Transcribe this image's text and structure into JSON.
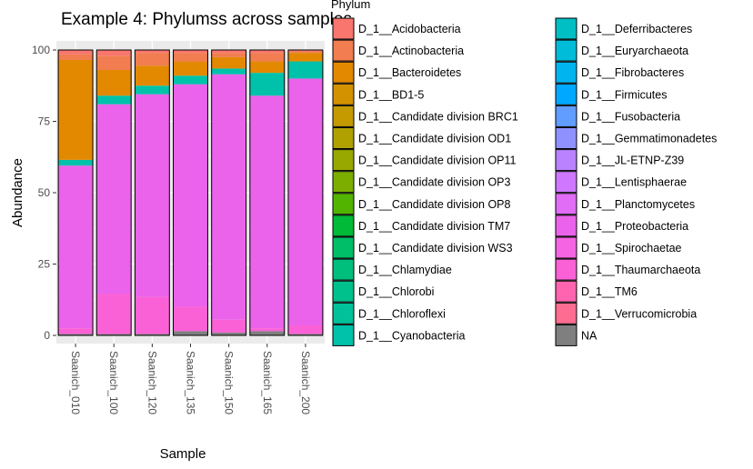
{
  "chart_data": {
    "type": "bar",
    "title": "Example 4: Phylumss across samples",
    "xlabel": "Sample",
    "ylabel": "Abundance",
    "ylim": [
      0,
      100
    ],
    "yticks": [
      0,
      25,
      50,
      75,
      100
    ],
    "grid": true,
    "legend_position": "right",
    "legend_title": "Phylum",
    "categories": [
      "Saanich_010",
      "Saanich_100",
      "Saanich_120",
      "Saanich_135",
      "Saanich_150",
      "Saanich_165",
      "Saanich_200"
    ],
    "series": [
      {
        "name": "NA",
        "color": "#7f7f7f",
        "values": [
          0.5,
          0.5,
          0.5,
          1.5,
          1,
          1.5,
          0.5
        ]
      },
      {
        "name": "D_1__Thaumarchaeota",
        "color": "#fb61d7",
        "values": [
          2,
          14,
          13,
          8.5,
          4.5,
          1,
          3
        ]
      },
      {
        "name": "D_1__Proteobacteria",
        "color": "#ea63ea",
        "values": [
          57,
          66.5,
          71,
          78,
          86,
          81.5,
          86.5
        ]
      },
      {
        "name": "D_1__Cyanobacteria",
        "color": "#00c1aa",
        "values": [
          2,
          3,
          3,
          3,
          2,
          8,
          6
        ]
      },
      {
        "name": "D_1__Bacteroidetes",
        "color": "#e38900",
        "values": [
          35,
          9,
          7,
          5,
          4,
          4,
          3
        ]
      },
      {
        "name": "D_1__Actinobacteria",
        "color": "#f17d50",
        "values": [
          2,
          5,
          4.5,
          3,
          1.5,
          3,
          0.5
        ]
      },
      {
        "name": "D_1__Acidobacteria",
        "color": "#f8766d",
        "values": [
          1.5,
          2,
          1,
          1,
          1,
          1,
          0.5
        ]
      }
    ],
    "legend": {
      "columns": [
        [
          {
            "label": "D_1__Acidobacteria",
            "color": "#f8766d"
          },
          {
            "label": "D_1__Actinobacteria",
            "color": "#f17d50"
          },
          {
            "label": "D_1__Bacteroidetes",
            "color": "#e38900"
          },
          {
            "label": "D_1__BD1-5",
            "color": "#d39200"
          },
          {
            "label": "D_1__Candidate division BRC1",
            "color": "#c49a00"
          },
          {
            "label": "D_1__Candidate division OD1",
            "color": "#b0a100"
          },
          {
            "label": "D_1__Candidate division OP11",
            "color": "#99a800"
          },
          {
            "label": "D_1__Candidate division OP3",
            "color": "#7cae00"
          },
          {
            "label": "D_1__Candidate division OP8",
            "color": "#53b400"
          },
          {
            "label": "D_1__Candidate division TM7",
            "color": "#00ba38"
          },
          {
            "label": "D_1__Candidate division WS3",
            "color": "#00be67"
          },
          {
            "label": "D_1__Chlamydiae",
            "color": "#00bf7d"
          },
          {
            "label": "D_1__Chlorobi",
            "color": "#00c08b"
          },
          {
            "label": "D_1__Chloroflexi",
            "color": "#00c19a"
          },
          {
            "label": "D_1__Cyanobacteria",
            "color": "#00c1aa"
          }
        ],
        [
          {
            "label": "D_1__Deferribacteres",
            "color": "#00bfc4"
          },
          {
            "label": "D_1__Euryarchaeota",
            "color": "#00bcd8"
          },
          {
            "label": "D_1__Fibrobacteres",
            "color": "#00b4f0"
          },
          {
            "label": "D_1__Firmicutes",
            "color": "#00a9ff"
          },
          {
            "label": "D_1__Fusobacteria",
            "color": "#619cff"
          },
          {
            "label": "D_1__Gemmatimonadetes",
            "color": "#8f91ff"
          },
          {
            "label": "D_1__JL-ETNP-Z39",
            "color": "#b983ff"
          },
          {
            "label": "D_1__Lentisphaerae",
            "color": "#cf78ff"
          },
          {
            "label": "D_1__Planctomycetes",
            "color": "#e16cf6"
          },
          {
            "label": "D_1__Proteobacteria",
            "color": "#ea63ea"
          },
          {
            "label": "D_1__Spirochaetae",
            "color": "#f564e3"
          },
          {
            "label": "D_1__Thaumarchaeota",
            "color": "#fb61d7"
          },
          {
            "label": "D_1__TM6",
            "color": "#ff64b0"
          },
          {
            "label": "D_1__Verrucomicrobia",
            "color": "#ff6c91"
          },
          {
            "label": "NA",
            "color": "#7f7f7f"
          }
        ]
      ]
    }
  }
}
